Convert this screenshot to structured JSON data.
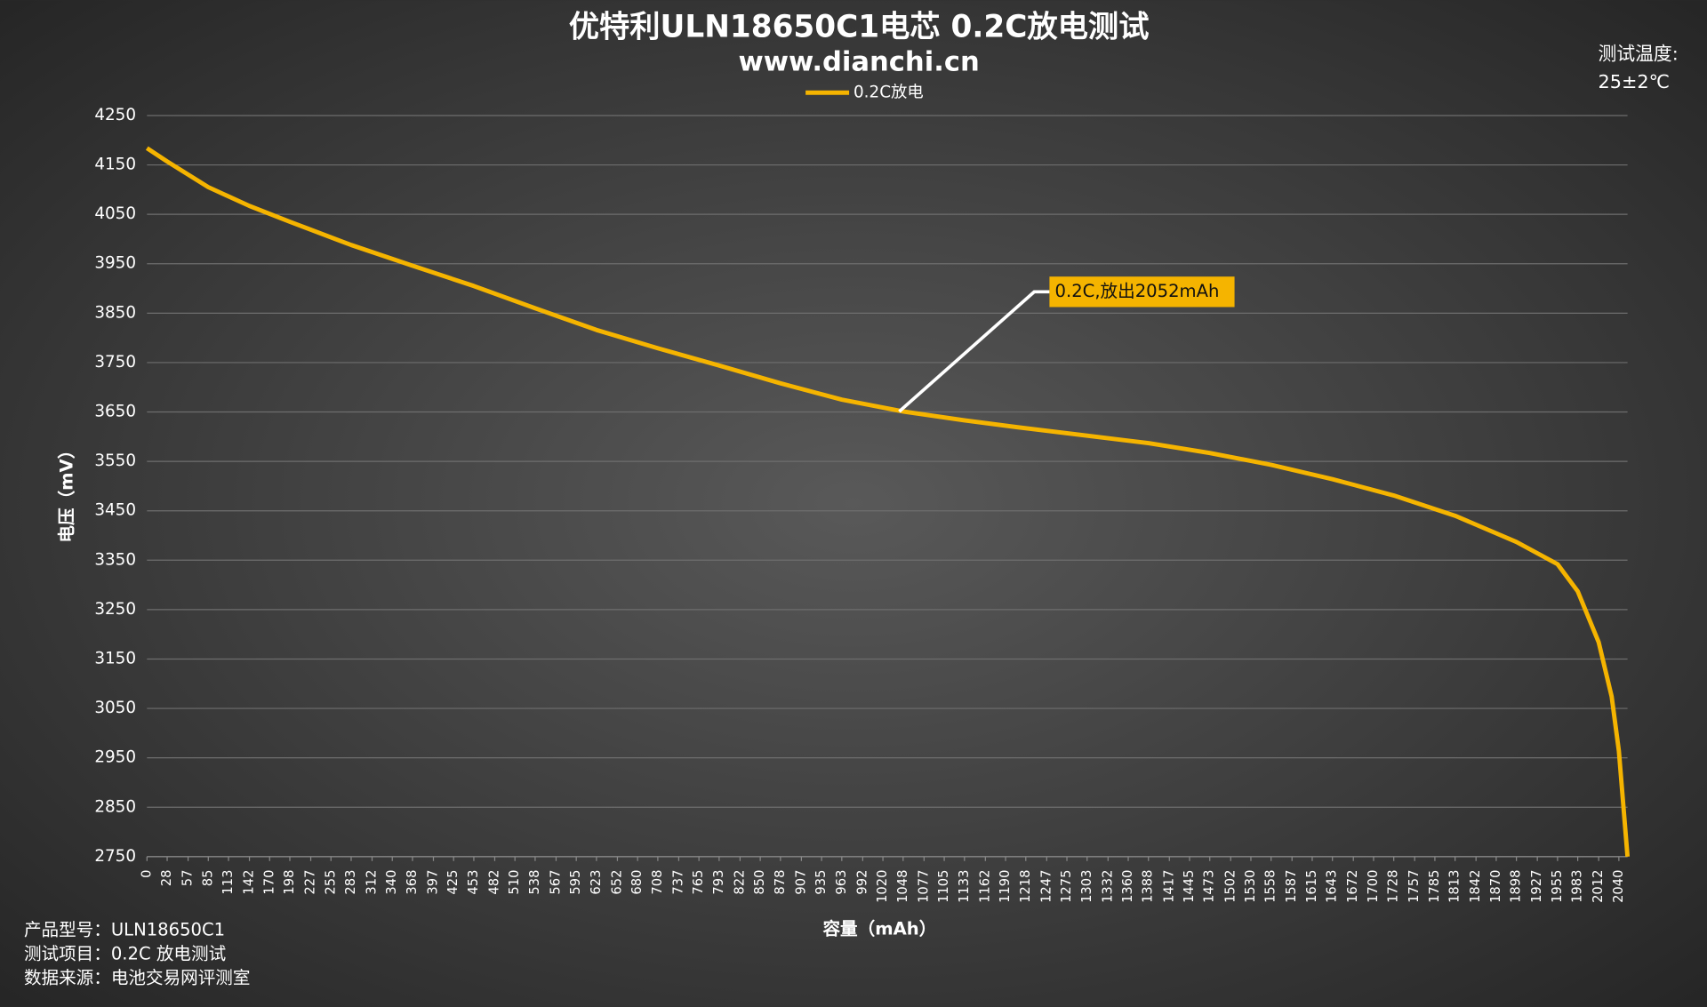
{
  "chart_data": {
    "type": "line",
    "title": "优特利ULN18650C1电芯 0.2C放电测试",
    "subtitle": "www.dianchi.cn",
    "xlabel": "容量（mAh）",
    "ylabel": "电压（mV）",
    "annotation": "0.2C,放出2052mAh",
    "info_right": [
      "测试温度:",
      "25±2℃"
    ],
    "info_left": [
      "产品型号：ULN18650C1",
      "测试项目：0.2C 放电测试",
      "数据来源：电池交易网评测室"
    ],
    "grid": true,
    "legend": "top",
    "xlim": [
      0,
      2052
    ],
    "ylim": [
      2750,
      4250
    ],
    "xticks": [
      0,
      28,
      57,
      85,
      113,
      142,
      170,
      198,
      227,
      255,
      283,
      312,
      340,
      368,
      397,
      425,
      453,
      482,
      510,
      538,
      567,
      595,
      623,
      652,
      680,
      708,
      737,
      765,
      793,
      822,
      850,
      878,
      907,
      935,
      963,
      992,
      1020,
      1048,
      1077,
      1105,
      1133,
      1162,
      1190,
      1218,
      1247,
      1275,
      1303,
      1332,
      1360,
      1388,
      1417,
      1445,
      1473,
      1502,
      1530,
      1558,
      1587,
      1615,
      1643,
      1672,
      1700,
      1728,
      1757,
      1785,
      1813,
      1842,
      1870,
      1898,
      1927,
      1955,
      1983,
      2012,
      2040
    ],
    "yticks": [
      2750,
      2850,
      2950,
      3050,
      3150,
      3250,
      3350,
      3450,
      3550,
      3650,
      3750,
      3850,
      3950,
      4050,
      4150,
      4250
    ],
    "x": [
      0,
      28,
      85,
      142,
      198,
      283,
      368,
      453,
      538,
      623,
      708,
      793,
      878,
      963,
      1048,
      1133,
      1218,
      1303,
      1388,
      1473,
      1558,
      1643,
      1728,
      1813,
      1898,
      1955,
      1983,
      2012,
      2030,
      2040,
      2052
    ],
    "series": [
      {
        "name": "0.2C放电",
        "color": "#f5b400",
        "values": [
          4184,
          4157,
          4105,
          4067,
          4035,
          3988,
          3946,
          3905,
          3860,
          3816,
          3779,
          3744,
          3708,
          3675,
          3651,
          3633,
          3617,
          3602,
          3587,
          3567,
          3543,
          3514,
          3481,
          3440,
          3387,
          3342,
          3287,
          3184,
          3074,
          2964,
          2750
        ]
      }
    ]
  }
}
